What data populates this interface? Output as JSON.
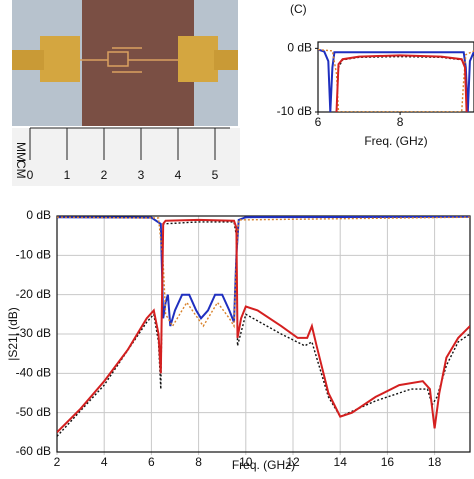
{
  "photo": {
    "ruler_labels": [
      "0",
      "1",
      "2",
      "3",
      "4",
      "5"
    ],
    "unit_labels": [
      "MM",
      "CM"
    ]
  },
  "chart_data": [
    {
      "type": "line",
      "title": "(C)",
      "x_label": "Freq. (GHz)",
      "xlim": [
        6,
        9.8
      ],
      "xticks": [
        6,
        8
      ],
      "ylim": [
        -10,
        1
      ],
      "yticks": [
        {
          "value": 0,
          "label": "0 dB"
        },
        {
          "value": -10,
          "label": "-10 dB"
        }
      ],
      "series": [
        {
          "color": "#1f2fbf",
          "linestyle": "solid",
          "x": [
            6,
            6.15,
            6.25,
            6.3,
            6.35,
            6.4,
            9.55,
            9.6,
            9.65,
            9.7,
            9.8
          ],
          "values": [
            -0.2,
            -0.5,
            -2,
            -10,
            -3,
            -0.6,
            -0.6,
            -3,
            -10,
            -2,
            -0.5
          ]
        },
        {
          "color": "#d9822b",
          "linestyle": "dotted",
          "x": [
            6,
            6.35,
            6.45,
            6.5,
            9.5,
            9.55,
            9.6,
            9.8
          ],
          "values": [
            -0.2,
            -0.4,
            -4,
            -10,
            -10,
            -5,
            -1,
            -0.4
          ]
        },
        {
          "color": "#111111",
          "linestyle": "dotted",
          "x": [
            6.45,
            6.5,
            6.6,
            7,
            8,
            9,
            9.5,
            9.58,
            9.62
          ],
          "values": [
            -10,
            -3,
            -1.8,
            -1.4,
            -1.3,
            -1.4,
            -1.8,
            -3,
            -10
          ]
        },
        {
          "color": "#d42020",
          "linestyle": "solid",
          "x": [
            6.45,
            6.5,
            6.6,
            7,
            8,
            9,
            9.5,
            9.58,
            9.62
          ],
          "values": [
            -10,
            -2.5,
            -1.7,
            -1.3,
            -1.1,
            -1.3,
            -1.7,
            -3,
            -10
          ]
        }
      ]
    },
    {
      "type": "line",
      "y_label": "|S21| (dB)",
      "x_label": "Freq. (GHz)",
      "xlim": [
        2,
        19.5
      ],
      "xticks": [
        2,
        4,
        6,
        8,
        10,
        12,
        14,
        16,
        18
      ],
      "ylim": [
        -60,
        0
      ],
      "yticks": [
        {
          "value": 0,
          "label": "0 dB"
        },
        {
          "value": -10,
          "label": "-10 dB"
        },
        {
          "value": -20,
          "label": "-20 dB"
        },
        {
          "value": -30,
          "label": "-30 dB"
        },
        {
          "value": -40,
          "label": "-40 dB"
        },
        {
          "value": -50,
          "label": "-50 dB"
        },
        {
          "value": -60,
          "label": "-60 dB"
        }
      ],
      "grid": true,
      "series": [
        {
          "color": "#1f2fbf",
          "linestyle": "solid",
          "x": [
            2,
            6,
            6.4,
            6.5,
            6.6,
            6.7,
            6.8,
            7,
            7.3,
            7.6,
            7.9,
            8.1,
            8.4,
            8.7,
            9,
            9.3,
            9.5,
            9.6,
            9.7,
            10,
            19.5
          ],
          "values": [
            -0.3,
            -0.4,
            -2,
            -26,
            -22,
            -20,
            -28,
            -24,
            -20,
            -20,
            -24,
            -26,
            -24,
            -20,
            -20,
            -24,
            -27,
            -10,
            -1,
            -0.3,
            -0.2
          ]
        },
        {
          "color": "#d9822b",
          "linestyle": "dotted",
          "x": [
            2,
            6.3,
            6.5,
            6.6,
            6.9,
            7.5,
            8.2,
            8.8,
            9.3,
            9.5,
            9.6,
            9.7,
            19.5
          ],
          "values": [
            -0.3,
            -0.5,
            -12,
            -25,
            -28,
            -22,
            -28,
            -22,
            -26,
            -28,
            -10,
            -1,
            -0.3
          ]
        },
        {
          "color": "#111111",
          "linestyle": "dotted",
          "x": [
            2,
            4,
            5.8,
            6.1,
            6.3,
            6.4,
            6.5,
            8,
            9.5,
            9.6,
            9.65,
            10,
            11.5,
            12.5,
            12.8,
            13,
            13.5,
            14,
            15.5,
            17,
            17.7,
            17.9,
            18.1,
            18.5,
            19,
            19.5
          ],
          "values": [
            -56,
            -43,
            -27,
            -25,
            -32,
            -44,
            -2,
            -1.5,
            -1.5,
            -5,
            -33,
            -25,
            -30,
            -33,
            -32,
            -36,
            -46,
            -51,
            -47,
            -44,
            -44,
            -48,
            -46,
            -38,
            -32,
            -30
          ]
        },
        {
          "color": "#d42020",
          "linestyle": "solid",
          "x": [
            2,
            3,
            4,
            5,
            5.8,
            6.1,
            6.3,
            6.4,
            6.5,
            6.6,
            8,
            9.5,
            9.6,
            9.65,
            9.8,
            10,
            10.5,
            11.5,
            12.2,
            12.6,
            12.8,
            13,
            13.5,
            14,
            14.5,
            15.5,
            16.5,
            17.5,
            17.8,
            18,
            18.2,
            18.5,
            19,
            19.5
          ],
          "values": [
            -55,
            -49,
            -42,
            -34,
            -26,
            -24,
            -30,
            -40,
            -2,
            -1.2,
            -1,
            -1.2,
            -3,
            -31,
            -26,
            -23,
            -24,
            -28,
            -31,
            -31,
            -28,
            -33,
            -45,
            -51,
            -50,
            -46,
            -43,
            -42,
            -44,
            -54,
            -45,
            -36,
            -31,
            -28
          ]
        }
      ]
    }
  ]
}
